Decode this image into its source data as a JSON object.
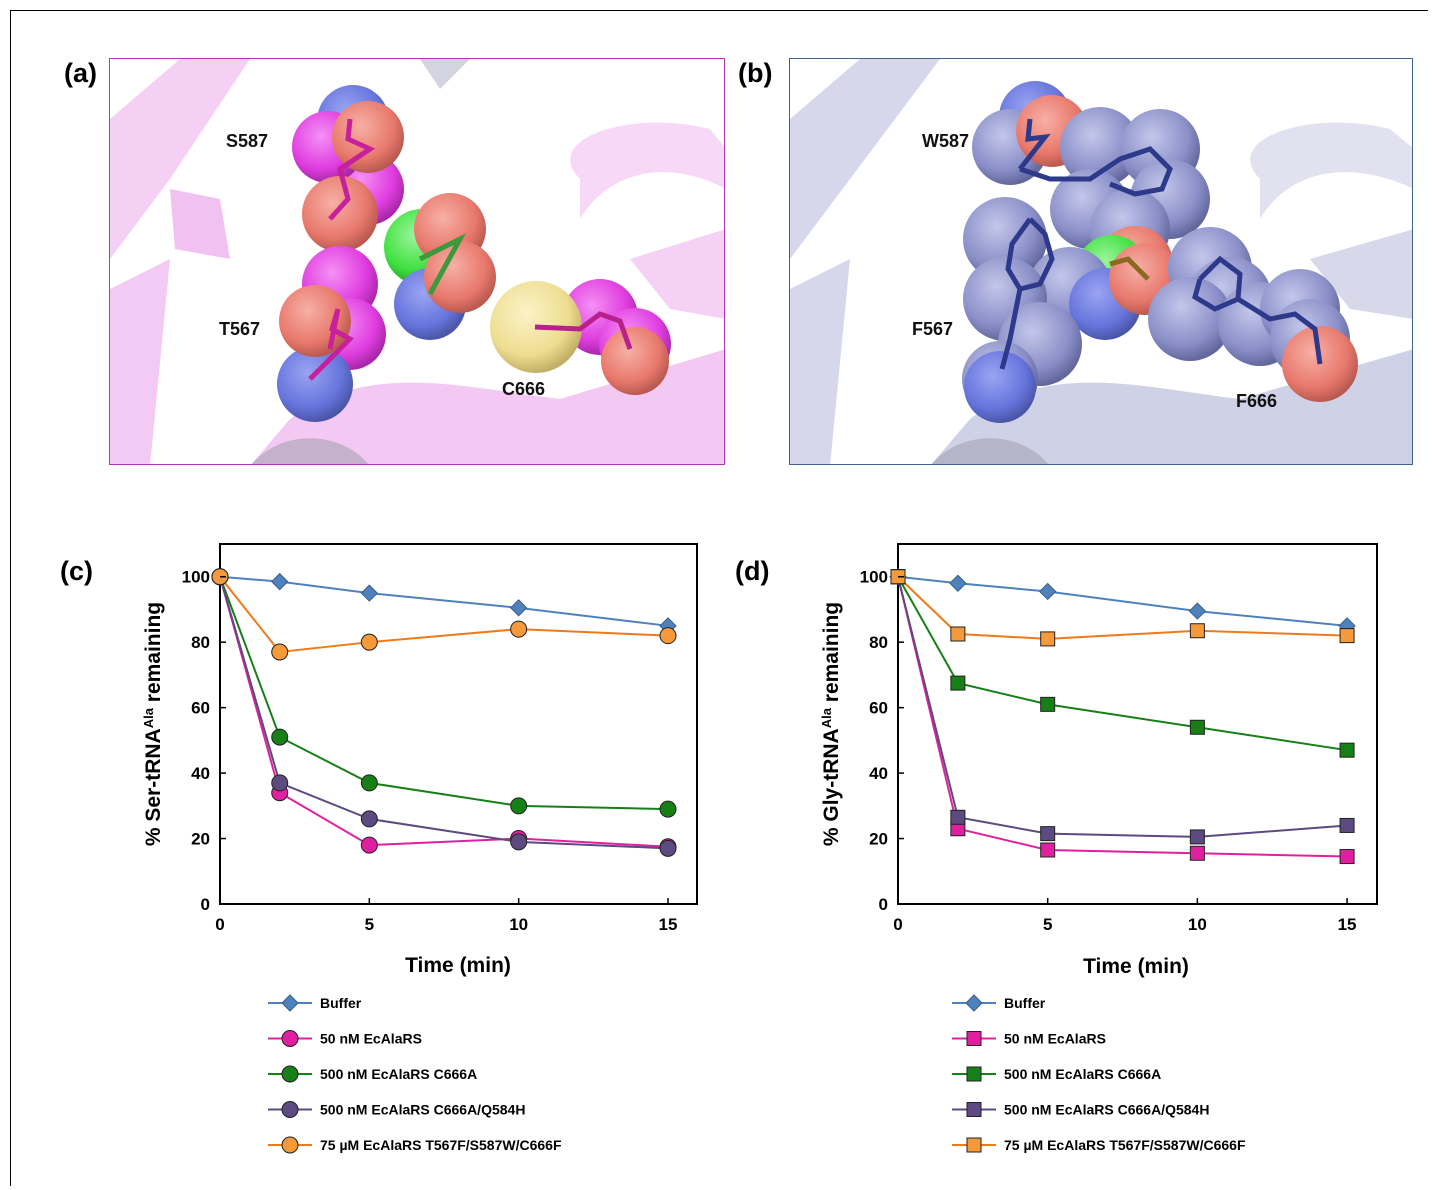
{
  "panels": {
    "a": {
      "label": "(a)",
      "residues": [
        "S587",
        "T567",
        "C666"
      ],
      "border_color": "#b03ab0",
      "atom_colors": {
        "oxygen": "#f08080",
        "nitrogen": "#6b78e0",
        "carbon": "#e040e0",
        "sulfur": "#f0e08a",
        "chlorine": "#40e040"
      }
    },
    "b": {
      "label": "(b)",
      "residues": [
        "W587",
        "F567",
        "F666"
      ],
      "border_color": "#41628c",
      "atom_colors": {
        "oxygen": "#f08080",
        "nitrogen": "#6b78e0",
        "carbon": "#8a8fc8",
        "chlorine": "#40e040"
      }
    }
  },
  "chart_data": [
    {
      "panel_label": "(c)",
      "type": "line",
      "xlabel": "Time (min)",
      "ylabel_main": "% Ser-tRNA",
      "ylabel_sup": "Ala",
      "ylabel_tail": " remaining",
      "xlim": [
        0,
        15
      ],
      "ylim": [
        0,
        110
      ],
      "xticks": [
        0,
        5,
        10,
        15
      ],
      "yticks": [
        0,
        20,
        40,
        60,
        80,
        100
      ],
      "x": [
        0,
        2,
        5,
        10,
        15
      ],
      "marker": "circle",
      "series": [
        {
          "name": "Buffer",
          "color": "#4f81bd",
          "fill": "#4f81bd",
          "marker": "diamond",
          "values": [
            100,
            98.5,
            95,
            90.5,
            85
          ]
        },
        {
          "name": "50 nM EcAlaRS",
          "color": "#e020a0",
          "fill": "#e020a0",
          "values": [
            100,
            34,
            18,
            20,
            17.5
          ]
        },
        {
          "name": "500 nM EcAlaRS C666A",
          "color": "#168016",
          "fill": "#168016",
          "values": [
            100,
            51,
            37,
            30,
            29
          ]
        },
        {
          "name": "500 nM EcAlaRS C666A/Q584H",
          "color": "#5c4a80",
          "fill": "#5c4a80",
          "values": [
            100,
            37,
            26,
            19,
            17
          ]
        },
        {
          "name": "75 µM EcAlaRS  T567F/S587W/C666F",
          "color": "#ef7a1a",
          "fill": "#f59a3a",
          "values": [
            100,
            77,
            80,
            84,
            82
          ]
        }
      ]
    },
    {
      "panel_label": "(d)",
      "type": "line",
      "xlabel": "Time (min)",
      "ylabel_main": "% Gly-tRNA",
      "ylabel_sup": "Ala",
      "ylabel_tail": " remaining",
      "xlim": [
        0,
        16
      ],
      "ylim": [
        0,
        110
      ],
      "xticks": [
        0,
        5,
        10,
        15
      ],
      "yticks": [
        0,
        20,
        40,
        60,
        80,
        100
      ],
      "x": [
        0,
        2,
        5,
        10,
        15
      ],
      "marker": "square",
      "series": [
        {
          "name": "Buffer",
          "color": "#4f81bd",
          "fill": "#4f81bd",
          "marker": "diamond",
          "values": [
            100,
            98,
            95.5,
            89.5,
            85
          ]
        },
        {
          "name": "50 nM EcAlaRS",
          "color": "#e020a0",
          "fill": "#e020a0",
          "values": [
            100,
            23,
            16.5,
            15.5,
            14.5
          ]
        },
        {
          "name": "500 nM EcAlaRS C666A",
          "color": "#168016",
          "fill": "#168016",
          "values": [
            100,
            67.5,
            61,
            54,
            47
          ]
        },
        {
          "name": "500 nM EcAlaRS C666A/Q584H",
          "color": "#5c4a80",
          "fill": "#5c4a80",
          "values": [
            100,
            26.5,
            21.5,
            20.5,
            24
          ]
        },
        {
          "name": "75 µM EcAlaRS  T567F/S587W/C666F",
          "color": "#ef7a1a",
          "fill": "#f59a3a",
          "values": [
            100,
            82.5,
            81,
            83.5,
            82
          ]
        }
      ]
    }
  ]
}
